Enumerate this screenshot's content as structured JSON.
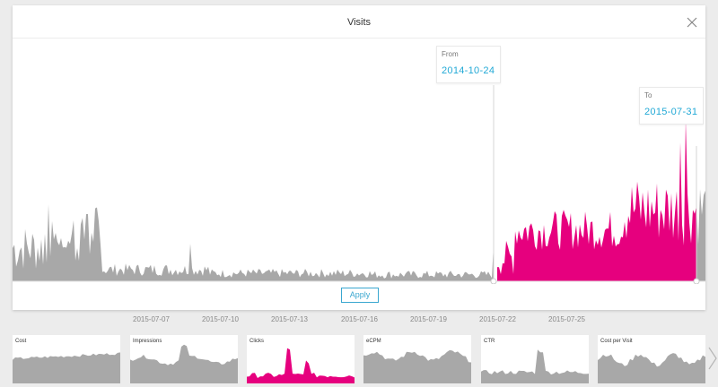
{
  "modal": {
    "title": "Visits",
    "close_icon": "close-icon"
  },
  "range": {
    "from_caption": "From",
    "from_date": "2014-10-24",
    "to_caption": "To",
    "to_date": "2015-07-31"
  },
  "apply_label": "Apply",
  "colors": {
    "accent": "#e6007e",
    "series_gray": "#a8a8a8",
    "link": "#22a9d6"
  },
  "axis": {
    "ticks": [
      "2015-07-07",
      "2015-07-10",
      "2015-07-13",
      "2015-07-16",
      "2015-07-19",
      "2015-07-22",
      "2015-07-25"
    ]
  },
  "chart_data": {
    "type": "area",
    "title": "Visits",
    "selected_range": [
      "2014-10-24",
      "2015-07-31"
    ],
    "selected_color": "#e6007e",
    "unselected_color": "#a8a8a8",
    "x_ticks": [
      "2015-07-07",
      "2015-07-10",
      "2015-07-13",
      "2015-07-16",
      "2015-07-19",
      "2015-07-22",
      "2015-07-25"
    ],
    "grid": false,
    "legend": "none"
  },
  "metrics": [
    {
      "label": "Cost",
      "icon": "area-chart-icon"
    },
    {
      "label": "Impressions",
      "icon": "area-chart-icon"
    },
    {
      "label": "Clicks",
      "icon": "area-chart-icon"
    },
    {
      "label": "eCPM",
      "icon": "area-chart-icon"
    },
    {
      "label": "CTR",
      "icon": "area-chart-icon"
    },
    {
      "label": "Cost per Visit",
      "icon": "area-chart-icon"
    }
  ],
  "next_icon": "chevron-right-icon"
}
